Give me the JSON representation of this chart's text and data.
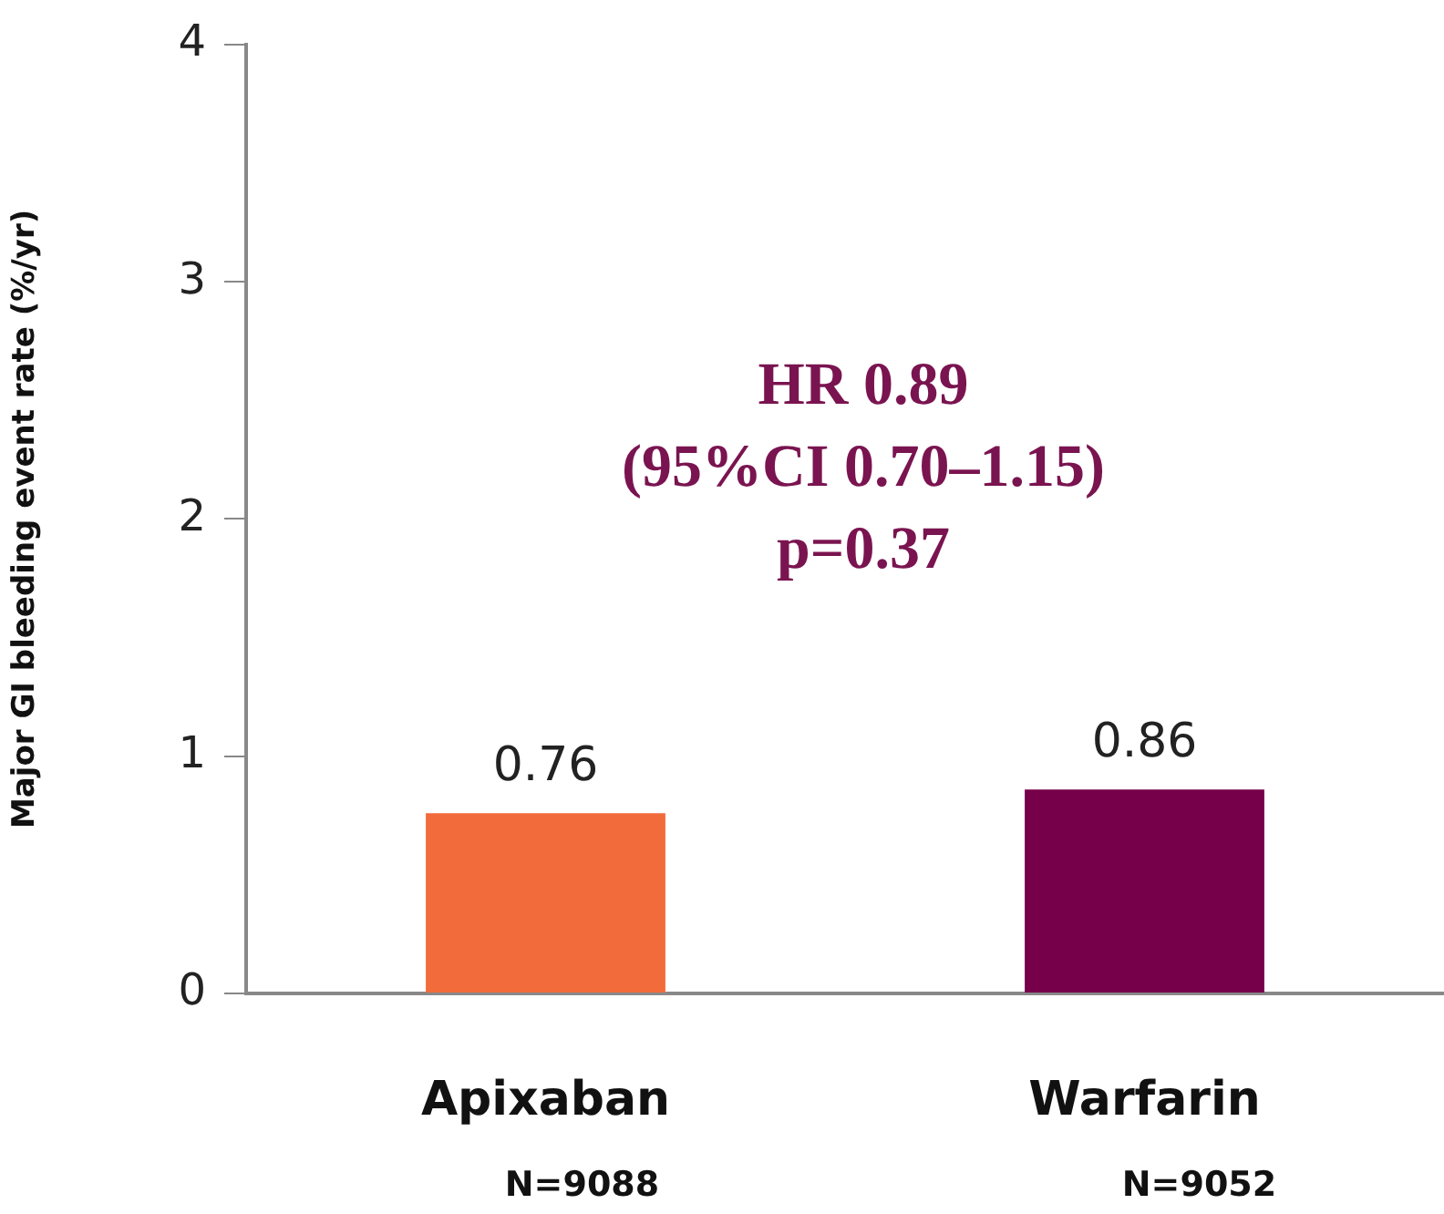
{
  "chart_data": {
    "type": "bar",
    "ylabel": "Major GI bleeding event rate (%/yr)",
    "categories": [
      "Apixaban",
      "Warfarin"
    ],
    "values": [
      0.76,
      0.86
    ],
    "colors": [
      "#f26b3a",
      "#76004a"
    ],
    "ylim": [
      0,
      4
    ],
    "yticks": [
      0,
      1,
      2,
      3,
      4
    ],
    "grid": false,
    "legend": false,
    "data_labels": true,
    "annotations": [
      "HR 0.89",
      "(95%CI 0.70–1.15)",
      "p=0.37",
      "N=9088",
      "N=9052"
    ]
  }
}
